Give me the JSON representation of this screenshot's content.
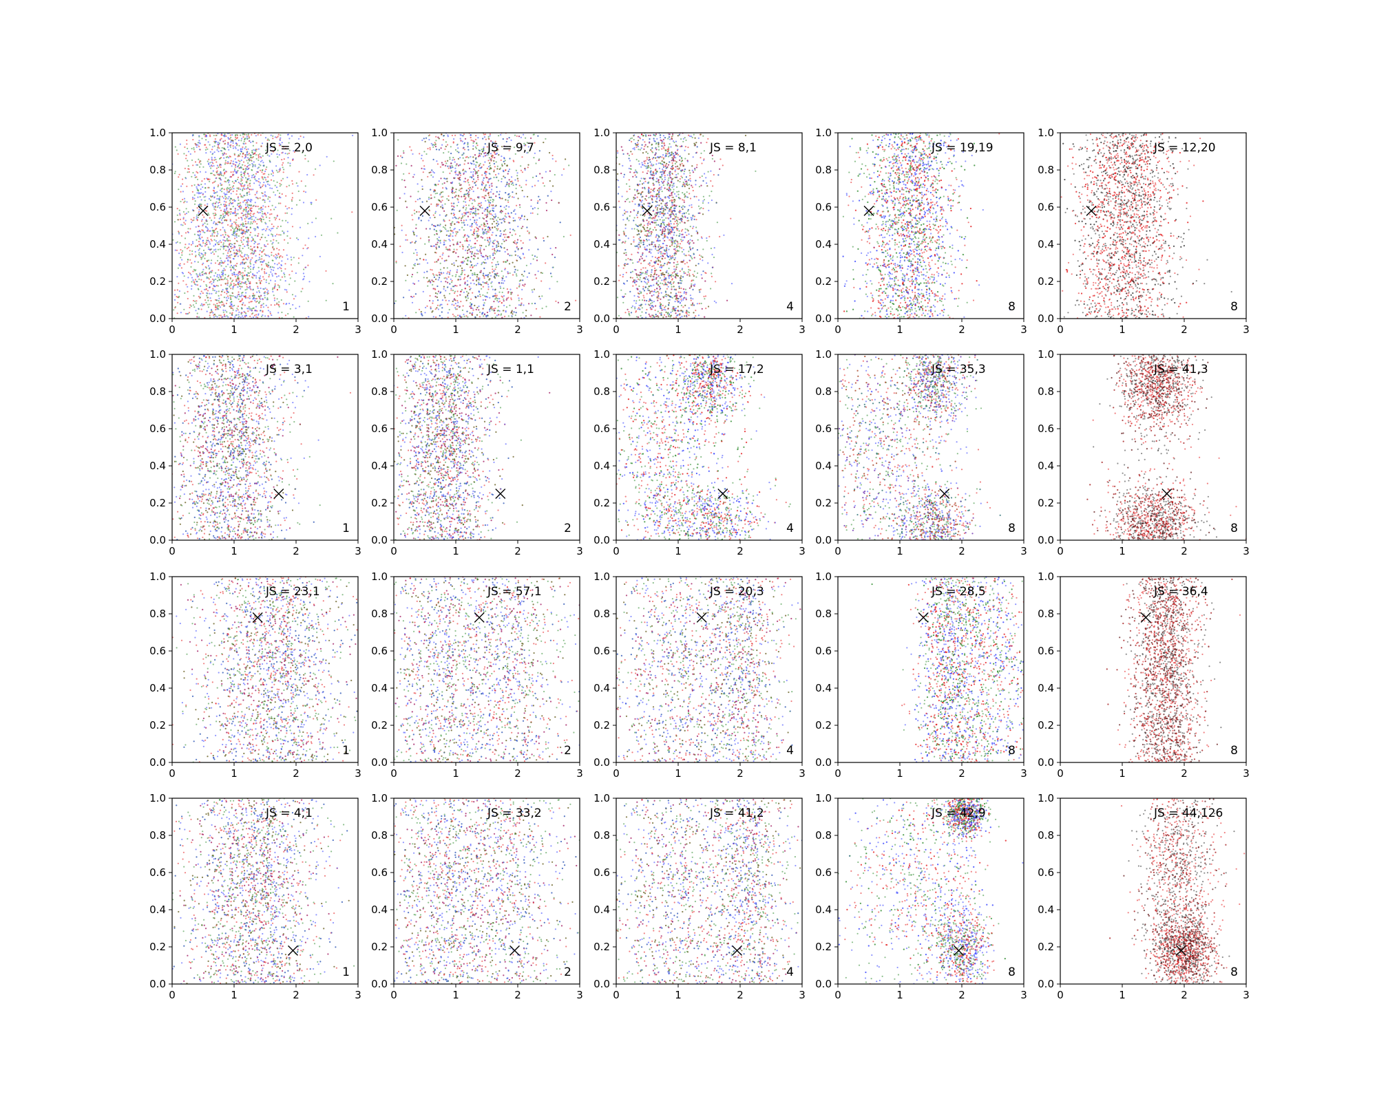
{
  "chart_data": {
    "type": "scatter",
    "layout": {
      "rows": 4,
      "cols": 5
    },
    "xlim": [
      0,
      3
    ],
    "ylim": [
      0,
      1
    ],
    "xticks": [
      "0",
      "1",
      "2",
      "3"
    ],
    "yticks": [
      "0.0",
      "0.2",
      "0.4",
      "0.6",
      "0.8",
      "1.0"
    ],
    "grid": false,
    "series_colors": {
      "red": "#e41a1c",
      "green": "#2e8b2e",
      "blue": "#3340ff",
      "black": "#333333"
    },
    "rows": [
      {
        "marker": [
          0.5,
          0.58
        ],
        "panels": [
          {
            "js": "JS = 2,0",
            "count": "1",
            "colors": [
              "red",
              "green",
              "blue"
            ],
            "clusters": [
              {
                "cx": 1.0,
                "cy": 0.5,
                "sx": 0.5,
                "sy": 0.6
              }
            ]
          },
          {
            "js": "JS = 9,7",
            "count": "2",
            "colors": [
              "red",
              "green",
              "blue"
            ],
            "clusters": [
              {
                "cx": 1.3,
                "cy": 0.5,
                "sx": 0.55,
                "sy": 0.6
              }
            ]
          },
          {
            "js": "JS = 8,1",
            "count": "4",
            "colors": [
              "red",
              "green",
              "blue"
            ],
            "clusters": [
              {
                "cx": 0.75,
                "cy": 0.5,
                "sx": 0.35,
                "sy": 0.6
              }
            ]
          },
          {
            "js": "JS = 19,19",
            "count": "8",
            "colors": [
              "red",
              "green",
              "blue"
            ],
            "clusters": [
              {
                "cx": 1.15,
                "cy": 0.55,
                "sx": 0.38,
                "sy": 0.55
              }
            ]
          },
          {
            "js": "JS = 12,20",
            "count": "8",
            "colors": [
              "red",
              "black"
            ],
            "clusters": [
              {
                "cx": 1.05,
                "cy": 0.6,
                "sx": 0.4,
                "sy": 0.5
              }
            ]
          }
        ]
      },
      {
        "marker": [
          1.72,
          0.25
        ],
        "panels": [
          {
            "js": "JS = 3,1",
            "count": "1",
            "colors": [
              "red",
              "green",
              "blue"
            ],
            "clusters": [
              {
                "cx": 0.95,
                "cy": 0.5,
                "sx": 0.45,
                "sy": 0.6
              }
            ]
          },
          {
            "js": "JS = 1,1",
            "count": "2",
            "colors": [
              "red",
              "green",
              "blue"
            ],
            "clusters": [
              {
                "cx": 0.8,
                "cy": 0.5,
                "sx": 0.4,
                "sy": 0.6
              }
            ]
          },
          {
            "js": "JS = 17,2",
            "count": "4",
            "colors": [
              "red",
              "green",
              "blue"
            ],
            "clusters": [
              {
                "cx": 1.5,
                "cy": 0.85,
                "sx": 0.3,
                "sy": 0.12
              },
              {
                "cx": 1.45,
                "cy": 0.12,
                "sx": 0.45,
                "sy": 0.1
              },
              {
                "cx": 0.6,
                "cy": 0.5,
                "sx": 0.4,
                "sy": 0.3
              }
            ]
          },
          {
            "js": "JS = 35,3",
            "count": "8",
            "colors": [
              "red",
              "green",
              "blue"
            ],
            "clusters": [
              {
                "cx": 1.55,
                "cy": 0.85,
                "sx": 0.28,
                "sy": 0.12
              },
              {
                "cx": 1.55,
                "cy": 0.1,
                "sx": 0.3,
                "sy": 0.1
              },
              {
                "cx": 0.55,
                "cy": 0.5,
                "sx": 0.4,
                "sy": 0.32
              }
            ]
          },
          {
            "js": "JS = 41,3",
            "count": "8",
            "colors": [
              "red",
              "black"
            ],
            "clusters": [
              {
                "cx": 1.55,
                "cy": 0.85,
                "sx": 0.3,
                "sy": 0.12
              },
              {
                "cx": 1.5,
                "cy": 0.1,
                "sx": 0.35,
                "sy": 0.1
              }
            ]
          }
        ]
      },
      {
        "marker": [
          1.38,
          0.78
        ],
        "panels": [
          {
            "js": "JS = 23,1",
            "count": "1",
            "colors": [
              "red",
              "green",
              "blue"
            ],
            "clusters": [
              {
                "cx": 1.6,
                "cy": 0.5,
                "sx": 0.6,
                "sy": 0.6
              }
            ]
          },
          {
            "js": "JS = 57,1",
            "count": "2",
            "colors": [
              "red",
              "green",
              "blue"
            ],
            "clusters": [
              {
                "cx": 1.8,
                "cy": 0.5,
                "sx": 0.5,
                "sy": 0.6
              },
              {
                "cx": 0.7,
                "cy": 0.5,
                "sx": 0.45,
                "sy": 0.6
              }
            ]
          },
          {
            "js": "JS = 20,3",
            "count": "4",
            "colors": [
              "red",
              "green",
              "blue"
            ],
            "clusters": [
              {
                "cx": 2.0,
                "cy": 0.5,
                "sx": 0.35,
                "sy": 0.6
              },
              {
                "cx": 0.9,
                "cy": 0.5,
                "sx": 0.5,
                "sy": 0.6
              }
            ]
          },
          {
            "js": "JS = 28,5",
            "count": "8",
            "colors": [
              "red",
              "green",
              "blue"
            ],
            "clusters": [
              {
                "cx": 1.75,
                "cy": 0.5,
                "sx": 0.25,
                "sy": 0.6
              },
              {
                "cx": 2.4,
                "cy": 0.5,
                "sx": 0.4,
                "sy": 0.5
              }
            ]
          },
          {
            "js": "JS = 36,4",
            "count": "8",
            "colors": [
              "red",
              "black"
            ],
            "clusters": [
              {
                "cx": 1.7,
                "cy": 0.5,
                "sx": 0.28,
                "sy": 0.6
              }
            ]
          }
        ]
      },
      {
        "marker": [
          1.95,
          0.18
        ],
        "panels": [
          {
            "js": "JS = 4,1",
            "count": "1",
            "colors": [
              "red",
              "green",
              "blue"
            ],
            "clusters": [
              {
                "cx": 1.3,
                "cy": 0.5,
                "sx": 0.55,
                "sy": 0.6
              }
            ]
          },
          {
            "js": "JS = 33,2",
            "count": "2",
            "colors": [
              "red",
              "green",
              "blue"
            ],
            "clusters": [
              {
                "cx": 1.7,
                "cy": 0.5,
                "sx": 0.55,
                "sy": 0.6
              },
              {
                "cx": 0.7,
                "cy": 0.5,
                "sx": 0.45,
                "sy": 0.6
              }
            ]
          },
          {
            "js": "JS = 41,2",
            "count": "4",
            "colors": [
              "red",
              "green",
              "blue"
            ],
            "clusters": [
              {
                "cx": 2.1,
                "cy": 0.5,
                "sx": 0.35,
                "sy": 0.6
              },
              {
                "cx": 0.9,
                "cy": 0.5,
                "sx": 0.5,
                "sy": 0.6
              }
            ]
          },
          {
            "js": "JS = 42,9",
            "count": "8",
            "colors": [
              "red",
              "green",
              "blue"
            ],
            "clusters": [
              {
                "cx": 2.0,
                "cy": 0.18,
                "sx": 0.25,
                "sy": 0.12
              },
              {
                "cx": 1.2,
                "cy": 0.55,
                "sx": 0.5,
                "sy": 0.3
              },
              {
                "cx": 2.05,
                "cy": 0.92,
                "sx": 0.15,
                "sy": 0.06
              }
            ]
          },
          {
            "js": "JS = 44,126",
            "count": "8",
            "colors": [
              "red",
              "black"
            ],
            "clusters": [
              {
                "cx": 2.0,
                "cy": 0.17,
                "sx": 0.25,
                "sy": 0.1
              },
              {
                "cx": 1.9,
                "cy": 0.6,
                "sx": 0.3,
                "sy": 0.3
              }
            ]
          }
        ]
      }
    ]
  }
}
